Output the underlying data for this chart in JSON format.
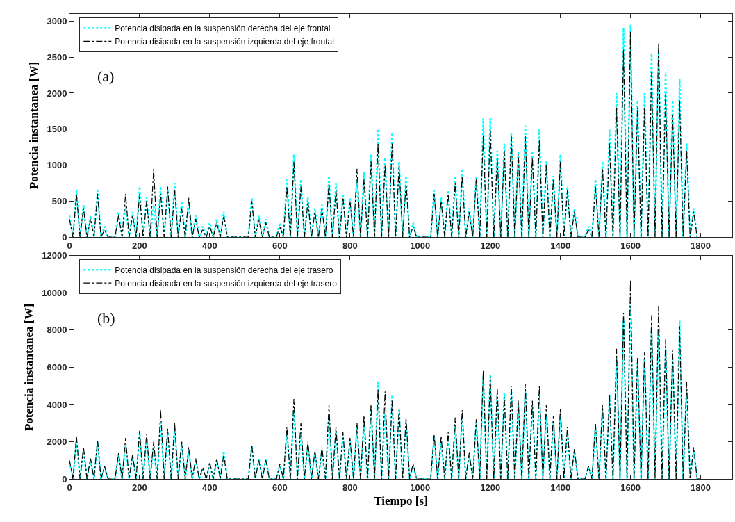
{
  "chart_data": [
    {
      "type": "line",
      "ylabel": "Potencia instantanea [W]",
      "annotations": [
        "(a)"
      ],
      "legend": "top left",
      "marker": "none",
      "xlim": [
        0,
        1890
      ],
      "xticks": [
        0,
        200,
        400,
        600,
        800,
        1000,
        1200,
        1400,
        1600,
        1800
      ],
      "ylim": [
        0,
        3100
      ],
      "yticks": [
        0,
        500,
        1000,
        1500,
        2000,
        2500,
        3000
      ],
      "x": [
        0,
        10,
        20,
        30,
        40,
        50,
        60,
        70,
        80,
        90,
        100,
        110,
        120,
        130,
        140,
        150,
        160,
        170,
        180,
        190,
        200,
        210,
        220,
        230,
        240,
        250,
        260,
        270,
        280,
        290,
        300,
        310,
        320,
        330,
        340,
        350,
        360,
        370,
        380,
        390,
        400,
        410,
        420,
        430,
        440,
        450,
        460,
        470,
        480,
        490,
        500,
        510,
        520,
        530,
        540,
        550,
        560,
        570,
        580,
        590,
        600,
        610,
        620,
        630,
        640,
        650,
        660,
        670,
        680,
        690,
        700,
        710,
        720,
        730,
        740,
        750,
        760,
        770,
        780,
        790,
        800,
        810,
        820,
        830,
        840,
        850,
        860,
        870,
        880,
        890,
        900,
        910,
        920,
        930,
        940,
        950,
        960,
        970,
        980,
        990,
        1000,
        1010,
        1020,
        1030,
        1040,
        1050,
        1060,
        1070,
        1080,
        1090,
        1100,
        1110,
        1120,
        1130,
        1140,
        1150,
        1160,
        1170,
        1180,
        1190,
        1200,
        1210,
        1220,
        1230,
        1240,
        1250,
        1260,
        1270,
        1280,
        1290,
        1300,
        1310,
        1320,
        1330,
        1340,
        1350,
        1360,
        1370,
        1380,
        1390,
        1400,
        1410,
        1420,
        1430,
        1440,
        1450,
        1460,
        1470,
        1480,
        1490,
        1500,
        1510,
        1520,
        1530,
        1540,
        1550,
        1560,
        1570,
        1580,
        1590,
        1600,
        1610,
        1620,
        1630,
        1640,
        1650,
        1660,
        1670,
        1680,
        1690,
        1700,
        1710,
        1720,
        1730,
        1740,
        1750,
        1760,
        1770,
        1780,
        1790,
        1800
      ],
      "series": [
        {
          "name": "Potencia disipada en la suspensión derecha del eje frontal",
          "color": "#00ffff",
          "line_style": "dotted",
          "values": [
            300,
            0,
            650,
            0,
            450,
            0,
            300,
            0,
            650,
            0,
            150,
            0,
            0,
            0,
            350,
            0,
            450,
            0,
            350,
            0,
            700,
            0,
            550,
            0,
            450,
            0,
            700,
            0,
            650,
            0,
            750,
            0,
            500,
            0,
            450,
            0,
            300,
            0,
            150,
            0,
            200,
            0,
            250,
            0,
            350,
            0,
            0,
            0,
            0,
            0,
            0,
            0,
            550,
            0,
            300,
            0,
            250,
            0,
            0,
            0,
            200,
            0,
            800,
            0,
            1150,
            0,
            800,
            0,
            550,
            0,
            400,
            0,
            450,
            0,
            850,
            0,
            750,
            0,
            600,
            0,
            550,
            0,
            800,
            0,
            900,
            0,
            1150,
            0,
            1500,
            0,
            1100,
            0,
            1450,
            0,
            1050,
            0,
            850,
            0,
            200,
            0,
            0,
            0,
            0,
            0,
            650,
            0,
            550,
            0,
            650,
            0,
            850,
            0,
            950,
            0,
            400,
            0,
            850,
            0,
            1650,
            0,
            1650,
            0,
            1200,
            0,
            1300,
            0,
            1450,
            0,
            1200,
            0,
            1550,
            0,
            1200,
            0,
            1500,
            0,
            1050,
            0,
            850,
            0,
            1150,
            0,
            700,
            0,
            400,
            0,
            0,
            0,
            150,
            0,
            800,
            0,
            1050,
            0,
            1500,
            0,
            2000,
            0,
            2900,
            0,
            2950,
            0,
            1900,
            0,
            2000,
            0,
            2550,
            0,
            2600,
            0,
            2300,
            0,
            1900,
            0,
            2200,
            0,
            1300,
            0,
            400,
            0,
            0
          ]
        },
        {
          "name": "Potencia disipada en la suspensión izquierda del eje frontal",
          "color": "#000000",
          "line_style": "dashdot",
          "values": [
            250,
            0,
            600,
            0,
            400,
            0,
            250,
            0,
            600,
            0,
            100,
            0,
            0,
            0,
            300,
            0,
            600,
            0,
            300,
            0,
            600,
            0,
            500,
            0,
            950,
            0,
            600,
            0,
            700,
            0,
            650,
            0,
            400,
            0,
            550,
            0,
            250,
            0,
            100,
            0,
            150,
            0,
            200,
            0,
            300,
            0,
            0,
            0,
            0,
            0,
            0,
            0,
            500,
            0,
            250,
            0,
            200,
            0,
            0,
            0,
            150,
            0,
            700,
            0,
            1050,
            0,
            700,
            0,
            500,
            0,
            350,
            0,
            400,
            0,
            750,
            0,
            650,
            0,
            550,
            0,
            500,
            0,
            950,
            0,
            800,
            0,
            1050,
            0,
            1300,
            0,
            1000,
            0,
            1300,
            0,
            1000,
            0,
            750,
            0,
            150,
            0,
            0,
            0,
            0,
            0,
            600,
            0,
            500,
            0,
            600,
            0,
            750,
            0,
            850,
            0,
            350,
            0,
            800,
            0,
            1400,
            0,
            1500,
            0,
            1100,
            0,
            1200,
            0,
            1400,
            0,
            1150,
            0,
            1400,
            0,
            1100,
            0,
            1350,
            0,
            1000,
            0,
            800,
            0,
            1050,
            0,
            650,
            0,
            350,
            0,
            0,
            0,
            100,
            0,
            700,
            0,
            950,
            0,
            1300,
            0,
            1800,
            0,
            2600,
            0,
            2850,
            0,
            1800,
            0,
            1800,
            0,
            2300,
            0,
            2700,
            0,
            2000,
            0,
            1700,
            0,
            1900,
            0,
            1200,
            0,
            350,
            0,
            0
          ]
        }
      ]
    },
    {
      "type": "line",
      "xlabel": "Tiempo [s]",
      "ylabel": "Potencia instantanea [W]",
      "annotations": [
        "(b)"
      ],
      "legend": "top left",
      "marker": "none",
      "xlim": [
        0,
        1890
      ],
      "xticks": [
        0,
        200,
        400,
        600,
        800,
        1000,
        1200,
        1400,
        1600,
        1800
      ],
      "ylim": [
        0,
        12000
      ],
      "yticks": [
        0,
        2000,
        4000,
        6000,
        8000,
        10000,
        12000
      ],
      "x": [
        0,
        10,
        20,
        30,
        40,
        50,
        60,
        70,
        80,
        90,
        100,
        110,
        120,
        130,
        140,
        150,
        160,
        170,
        180,
        190,
        200,
        210,
        220,
        230,
        240,
        250,
        260,
        270,
        280,
        290,
        300,
        310,
        320,
        330,
        340,
        350,
        360,
        370,
        380,
        390,
        400,
        410,
        420,
        430,
        440,
        450,
        460,
        470,
        480,
        490,
        500,
        510,
        520,
        530,
        540,
        550,
        560,
        570,
        580,
        590,
        600,
        610,
        620,
        630,
        640,
        650,
        660,
        670,
        680,
        690,
        700,
        710,
        720,
        730,
        740,
        750,
        760,
        770,
        780,
        790,
        800,
        810,
        820,
        830,
        840,
        850,
        860,
        870,
        880,
        890,
        900,
        910,
        920,
        930,
        940,
        950,
        960,
        970,
        980,
        990,
        1000,
        1010,
        1020,
        1030,
        1040,
        1050,
        1060,
        1070,
        1080,
        1090,
        1100,
        1110,
        1120,
        1130,
        1140,
        1150,
        1160,
        1170,
        1180,
        1190,
        1200,
        1210,
        1220,
        1230,
        1240,
        1250,
        1260,
        1270,
        1280,
        1290,
        1300,
        1310,
        1320,
        1330,
        1340,
        1350,
        1360,
        1370,
        1380,
        1390,
        1400,
        1410,
        1420,
        1430,
        1440,
        1450,
        1460,
        1470,
        1480,
        1490,
        1500,
        1510,
        1520,
        1530,
        1540,
        1550,
        1560,
        1570,
        1580,
        1590,
        1600,
        1610,
        1620,
        1630,
        1640,
        1650,
        1660,
        1670,
        1680,
        1690,
        1700,
        1710,
        1720,
        1730,
        1740,
        1750,
        1760,
        1770,
        1780,
        1790,
        1800
      ],
      "series": [
        {
          "name": "Potencia disipada en la suspensión derecha del eje trasero",
          "color": "#00ffff",
          "line_style": "dotted",
          "values": [
            900,
            0,
            2000,
            0,
            1500,
            0,
            1000,
            0,
            2000,
            0,
            600,
            0,
            0,
            0,
            1300,
            0,
            1800,
            0,
            1200,
            0,
            2500,
            0,
            2200,
            0,
            1700,
            0,
            3000,
            0,
            2500,
            0,
            2600,
            0,
            1900,
            0,
            1500,
            0,
            1000,
            0,
            500,
            0,
            800,
            0,
            1000,
            0,
            1500,
            0,
            0,
            0,
            0,
            0,
            0,
            0,
            1800,
            0,
            1100,
            0,
            1100,
            0,
            0,
            0,
            700,
            0,
            2500,
            0,
            3700,
            0,
            2500,
            0,
            1800,
            0,
            1400,
            0,
            1500,
            0,
            3300,
            0,
            2500,
            0,
            2300,
            0,
            2000,
            0,
            2800,
            0,
            3000,
            0,
            3800,
            0,
            5200,
            0,
            3500,
            0,
            4500,
            0,
            3700,
            0,
            3000,
            0,
            700,
            0,
            0,
            0,
            0,
            0,
            2300,
            0,
            2000,
            0,
            2300,
            0,
            2800,
            0,
            3300,
            0,
            1300,
            0,
            3000,
            0,
            5500,
            0,
            5600,
            0,
            4400,
            0,
            4600,
            0,
            4800,
            0,
            4000,
            0,
            4700,
            0,
            4000,
            0,
            4600,
            0,
            3500,
            0,
            3000,
            0,
            3500,
            0,
            2500,
            0,
            1500,
            0,
            0,
            0,
            600,
            0,
            2800,
            0,
            3700,
            0,
            4500,
            0,
            6500,
            0,
            8500,
            0,
            9500,
            0,
            6300,
            0,
            6500,
            0,
            8000,
            0,
            8000,
            0,
            7000,
            0,
            6500,
            0,
            8500,
            0,
            4800,
            0,
            1500,
            0,
            0
          ]
        },
        {
          "name": "Potencia disipada en la suspensión izquierda del eje trasero",
          "color": "#000000",
          "line_style": "dashdot",
          "values": [
            1000,
            0,
            2300,
            0,
            1700,
            0,
            1100,
            0,
            2100,
            0,
            700,
            0,
            0,
            0,
            1400,
            0,
            2200,
            0,
            1300,
            0,
            2600,
            0,
            2400,
            0,
            2000,
            0,
            3700,
            0,
            2700,
            0,
            3000,
            0,
            2000,
            0,
            1700,
            0,
            1100,
            0,
            600,
            0,
            900,
            0,
            1100,
            0,
            1300,
            0,
            0,
            0,
            0,
            0,
            0,
            0,
            1800,
            0,
            1000,
            0,
            1000,
            0,
            0,
            0,
            800,
            0,
            2800,
            0,
            4300,
            0,
            3000,
            0,
            2000,
            0,
            1500,
            0,
            1700,
            0,
            4000,
            0,
            2800,
            0,
            2500,
            0,
            2200,
            0,
            3000,
            0,
            3400,
            0,
            4000,
            0,
            4800,
            0,
            4700,
            0,
            4200,
            0,
            3800,
            0,
            3300,
            0,
            800,
            0,
            0,
            0,
            0,
            0,
            2400,
            0,
            2300,
            0,
            2500,
            0,
            3300,
            0,
            3700,
            0,
            1400,
            0,
            3200,
            0,
            5800,
            0,
            5500,
            0,
            4900,
            0,
            4400,
            0,
            5000,
            0,
            4200,
            0,
            5100,
            0,
            4200,
            0,
            5000,
            0,
            4000,
            0,
            3400,
            0,
            3800,
            0,
            2800,
            0,
            1600,
            0,
            0,
            0,
            700,
            0,
            3000,
            0,
            4000,
            0,
            4500,
            0,
            7000,
            0,
            8900,
            0,
            10700,
            0,
            6500,
            0,
            6800,
            0,
            8800,
            0,
            9300,
            0,
            7500,
            0,
            6900,
            0,
            8200,
            0,
            5200,
            0,
            1700,
            0,
            0
          ]
        }
      ]
    }
  ]
}
